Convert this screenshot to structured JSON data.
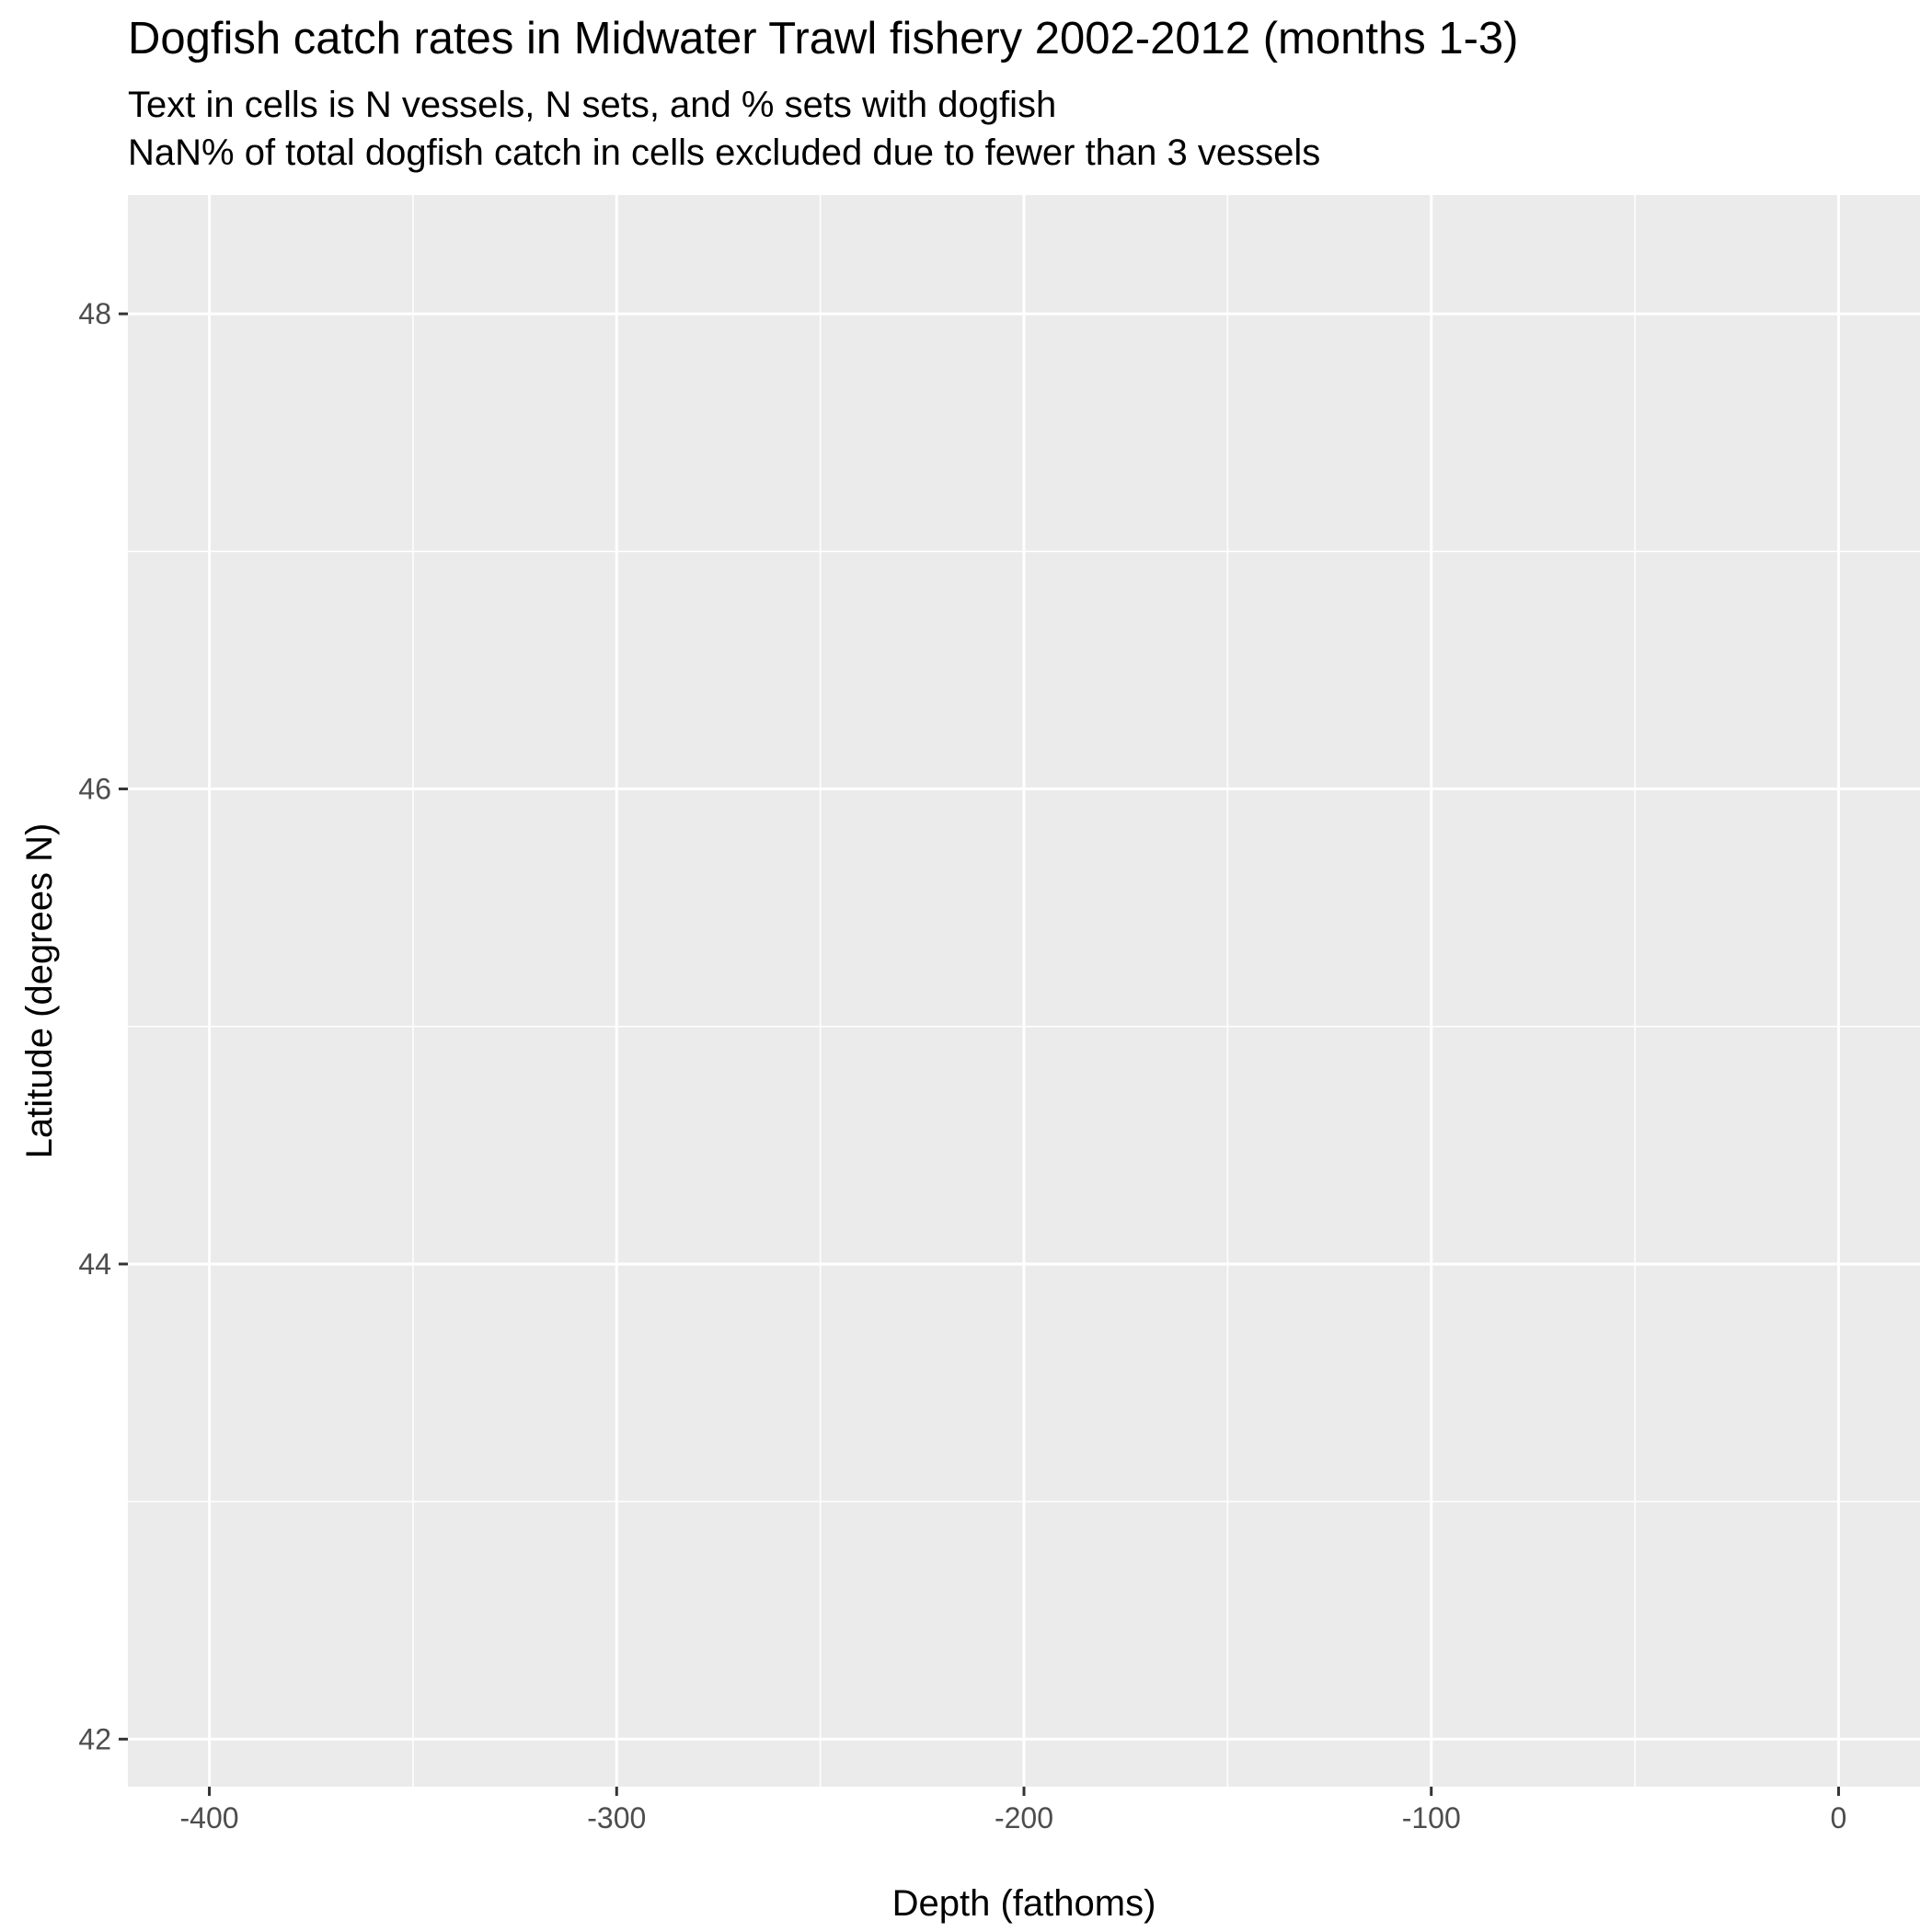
{
  "chart_data": {
    "type": "heatmap",
    "title": "Dogfish catch rates in Midwater Trawl fishery 2002-2012 (months 1-3)",
    "subtitle": [
      "Text in cells is N vessels, N sets, and % sets with dogfish",
      "NaN% of total dogfish catch in cells excluded due to fewer than 3 vessels"
    ],
    "xlabel": "Depth (fathoms)",
    "ylabel": "Latitude (degrees N)",
    "xlim": [
      -420,
      20
    ],
    "ylim": [
      41.8,
      48.5
    ],
    "x_ticks": [
      -400,
      -300,
      -200,
      -100,
      0
    ],
    "x_minor": [
      -350,
      -250,
      -150,
      -50
    ],
    "y_ticks": [
      42,
      44,
      46,
      48
    ],
    "y_minor": [
      43,
      45,
      47
    ],
    "cells": [],
    "grid": true,
    "colors": {
      "panel_background": "#EBEBEB",
      "grid": "#FFFFFF",
      "tick_text": "#4D4D4D",
      "tick_mark": "#333333"
    }
  }
}
